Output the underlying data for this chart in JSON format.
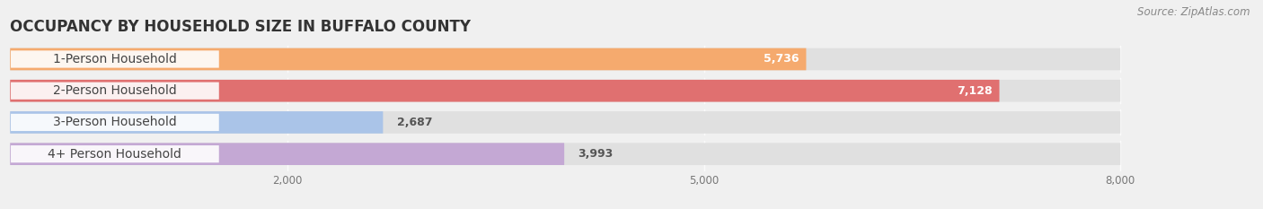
{
  "title": "OCCUPANCY BY HOUSEHOLD SIZE IN BUFFALO COUNTY",
  "source": "Source: ZipAtlas.com",
  "categories": [
    "1-Person Household",
    "2-Person Household",
    "3-Person Household",
    "4+ Person Household"
  ],
  "values": [
    5736,
    7128,
    2687,
    3993
  ],
  "bar_colors": [
    "#f5aa6e",
    "#e07070",
    "#aac4e8",
    "#c4a8d4"
  ],
  "xlim_max": 8800,
  "data_max": 8000,
  "xticks": [
    2000,
    5000,
    8000
  ],
  "background_color": "#f0f0f0",
  "row_bg_color": "#e8e8e8",
  "title_fontsize": 12,
  "label_fontsize": 10,
  "value_fontsize": 9,
  "source_fontsize": 8.5
}
